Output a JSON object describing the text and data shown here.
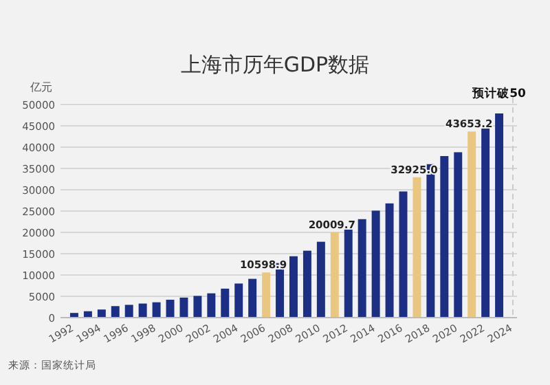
{
  "chart_data": {
    "type": "bar",
    "title": "上海市历年GDP数据",
    "ylabel": "亿元",
    "x": [
      1992,
      1993,
      1994,
      1995,
      1996,
      1997,
      1998,
      1999,
      2000,
      2001,
      2002,
      2003,
      2004,
      2005,
      2006,
      2007,
      2008,
      2009,
      2010,
      2011,
      2012,
      2013,
      2014,
      2015,
      2016,
      2017,
      2018,
      2019,
      2020,
      2021,
      2022,
      2023
    ],
    "values": [
      1100,
      1500,
      1900,
      2700,
      3000,
      3300,
      3600,
      4200,
      4700,
      5100,
      5700,
      6800,
      8000,
      9100,
      10598.9,
      12800,
      14400,
      15700,
      17800,
      20009.7,
      21000,
      23100,
      25100,
      26800,
      29600,
      32925.0,
      36000,
      37900,
      38800,
      43653.2,
      44600,
      47900
    ],
    "colors": [
      "#1c2f85",
      "#1c2f85",
      "#1c2f85",
      "#1c2f85",
      "#1c2f85",
      "#1c2f85",
      "#1c2f85",
      "#1c2f85",
      "#1c2f85",
      "#1c2f85",
      "#1c2f85",
      "#1c2f85",
      "#1c2f85",
      "#1c2f85",
      "#e9c781",
      "#1c2f85",
      "#1c2f85",
      "#1c2f85",
      "#1c2f85",
      "#e9c781",
      "#1c2f85",
      "#1c2f85",
      "#1c2f85",
      "#1c2f85",
      "#1c2f85",
      "#e9c781",
      "#1c2f85",
      "#1c2f85",
      "#1c2f85",
      "#e9c781",
      "#1c2f85",
      "#1c2f85"
    ],
    "value_labels": [
      null,
      null,
      null,
      null,
      null,
      null,
      null,
      null,
      null,
      null,
      null,
      null,
      null,
      null,
      "10598.9",
      null,
      null,
      null,
      null,
      "20009.7",
      null,
      null,
      null,
      null,
      null,
      "32925.0",
      null,
      null,
      null,
      "43653.2",
      null,
      null
    ],
    "xlim": [
      1991,
      2024.3
    ],
    "xticks": [
      1992,
      1994,
      1996,
      1998,
      2000,
      2002,
      2004,
      2006,
      2008,
      2010,
      2012,
      2014,
      2016,
      2018,
      2020,
      2022,
      2024
    ],
    "ylim": [
      0,
      50000
    ],
    "yticks": [
      0,
      5000,
      10000,
      15000,
      20000,
      25000,
      30000,
      35000,
      40000,
      45000,
      50000
    ],
    "grid": "y",
    "ref_lines": [
      {
        "axis": "x",
        "value": 2024,
        "color": "#cccccc",
        "line_style": "dashed"
      }
    ],
    "annotations": [
      {
        "text": "预计破50",
        "x": 2023,
        "y": 47900
      },
      "来源：国家统计局"
    ]
  }
}
